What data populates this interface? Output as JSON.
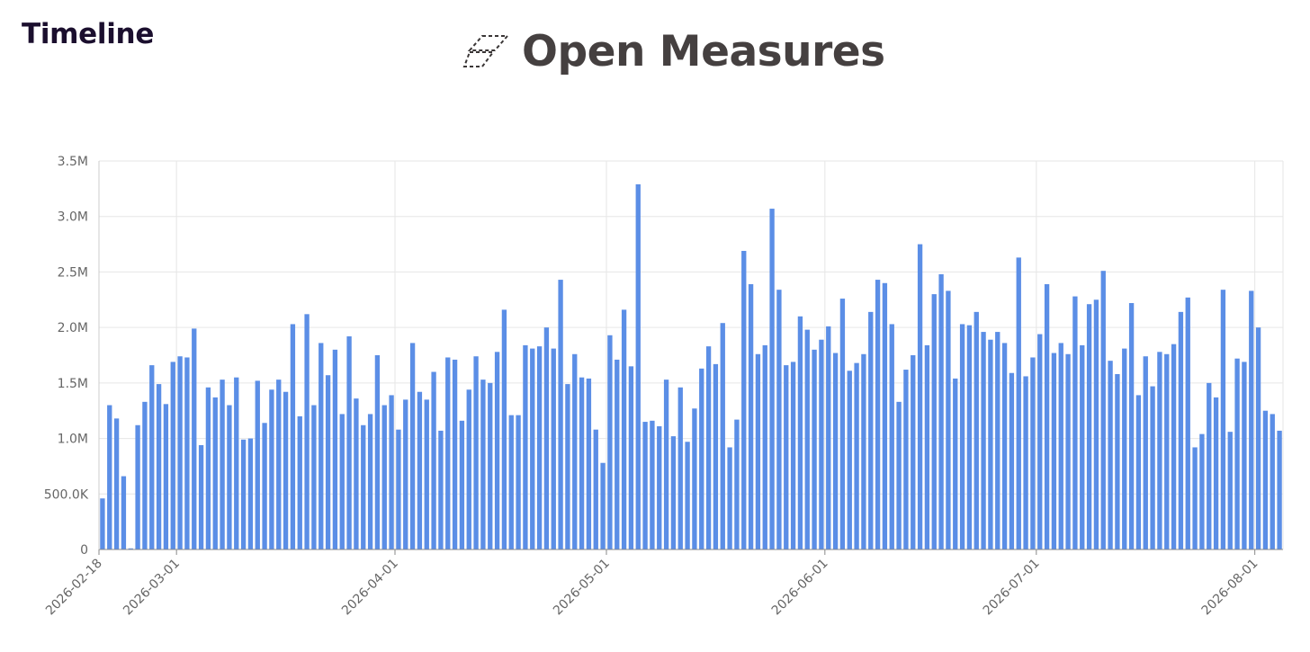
{
  "header": {
    "title": "Timeline",
    "brand": "Open Measures",
    "brand_icon": "dashed-parallelogram-logo-icon"
  },
  "chart_data": {
    "type": "bar",
    "title": "",
    "xlabel": "",
    "ylabel": "",
    "bar_color": "#5b8ee6",
    "grid": true,
    "x_start": "2026-02-18",
    "x_tick_labels": [
      "2026-02-18",
      "2026-03-01",
      "2026-04-01",
      "2026-05-01",
      "2026-06-01",
      "2026-07-01",
      "2026-08-01"
    ],
    "y_tick_labels": [
      "0",
      "500.0K",
      "1.0M",
      "1.5M",
      "2.0M",
      "2.5M",
      "3.0M",
      "3.5M"
    ],
    "ylim": [
      0,
      3500000
    ],
    "values": [
      460000,
      1300000,
      1180000,
      660000,
      10000,
      1120000,
      1330000,
      1660000,
      1490000,
      1310000,
      1690000,
      1740000,
      1730000,
      1990000,
      940000,
      1460000,
      1370000,
      1530000,
      1300000,
      1550000,
      990000,
      1000000,
      1520000,
      1140000,
      1440000,
      1530000,
      1420000,
      2030000,
      1200000,
      2120000,
      1300000,
      1860000,
      1570000,
      1800000,
      1220000,
      1920000,
      1360000,
      1120000,
      1220000,
      1750000,
      1300000,
      1390000,
      1080000,
      1350000,
      1860000,
      1420000,
      1350000,
      1600000,
      1070000,
      1730000,
      1710000,
      1160000,
      1440000,
      1740000,
      1530000,
      1500000,
      1780000,
      2160000,
      1210000,
      1210000,
      1840000,
      1810000,
      1830000,
      2000000,
      1810000,
      2430000,
      1490000,
      1760000,
      1550000,
      1540000,
      1080000,
      780000,
      1930000,
      1710000,
      2160000,
      1650000,
      3290000,
      1150000,
      1160000,
      1110000,
      1530000,
      1020000,
      1460000,
      970000,
      1270000,
      1630000,
      1830000,
      1670000,
      2040000,
      920000,
      1170000,
      2690000,
      2390000,
      1760000,
      1840000,
      3070000,
      2340000,
      1660000,
      1690000,
      2100000,
      1980000,
      1800000,
      1890000,
      2010000,
      1770000,
      2260000,
      1610000,
      1680000,
      1760000,
      2140000,
      2430000,
      2400000,
      2030000,
      1330000,
      1620000,
      1750000,
      2750000,
      1840000,
      2300000,
      2480000,
      2330000,
      1540000,
      2030000,
      2020000,
      2140000,
      1960000,
      1890000,
      1960000,
      1860000,
      1590000,
      2630000,
      1560000,
      1730000,
      1940000,
      2390000,
      1770000,
      1860000,
      1760000,
      2280000,
      1840000,
      2210000,
      2250000,
      2510000,
      1700000,
      1580000,
      1810000,
      2220000,
      1390000,
      1740000,
      1470000,
      1780000,
      1760000,
      1850000,
      2140000,
      2270000,
      920000,
      1040000,
      1500000,
      1370000,
      2340000,
      1060000,
      1720000,
      1690000,
      2330000,
      2000000,
      1250000,
      1220000,
      1070000
    ]
  }
}
